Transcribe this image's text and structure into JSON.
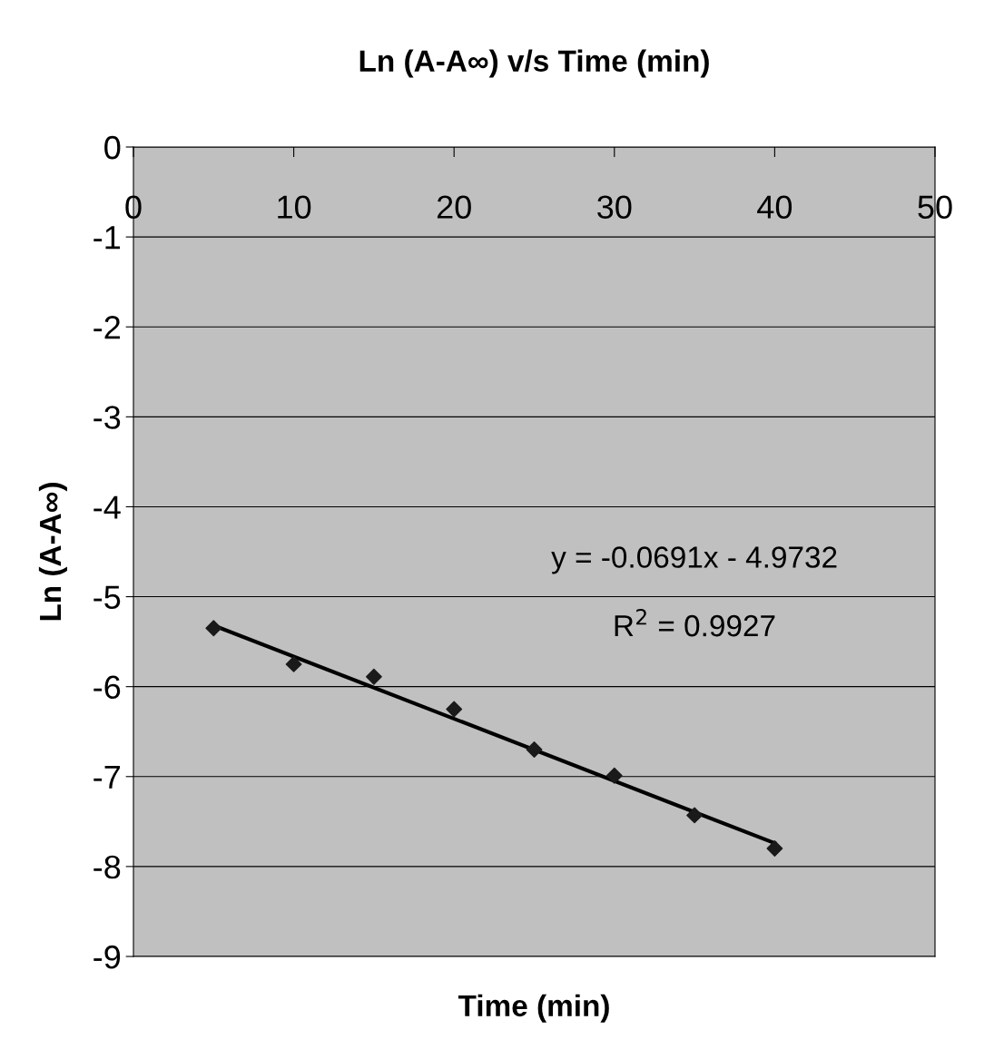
{
  "chart_data": {
    "type": "scatter",
    "title": "Ln (A-A∞) v/s Time (min)",
    "xlabel": "Time (min)",
    "ylabel": "Ln (A-A∞)",
    "xlim": [
      0,
      50
    ],
    "xticks": [
      0,
      10,
      20,
      30,
      40,
      50
    ],
    "ylim": [
      -9,
      0
    ],
    "yticks": [
      -9,
      -8,
      -7,
      -6,
      -5,
      -4,
      -3,
      -2,
      -1,
      0
    ],
    "grid": "y",
    "series": [
      {
        "color": "#1a1a1a",
        "marker": "diamond",
        "x": [
          5,
          10,
          15,
          20,
          25,
          30,
          35,
          40
        ],
        "values": [
          -5.35,
          -5.75,
          -5.89,
          -6.25,
          -6.7,
          -6.99,
          -7.43,
          -7.8
        ]
      },
      {
        "type": "line",
        "color": "#000000",
        "line_style": "solid",
        "x": [
          5,
          40
        ],
        "values": [
          -5.32,
          -7.74
        ]
      }
    ],
    "annotations": [
      "y = -0.0691x - 4.9732",
      "R$^{2}$ = 0.9927"
    ]
  }
}
